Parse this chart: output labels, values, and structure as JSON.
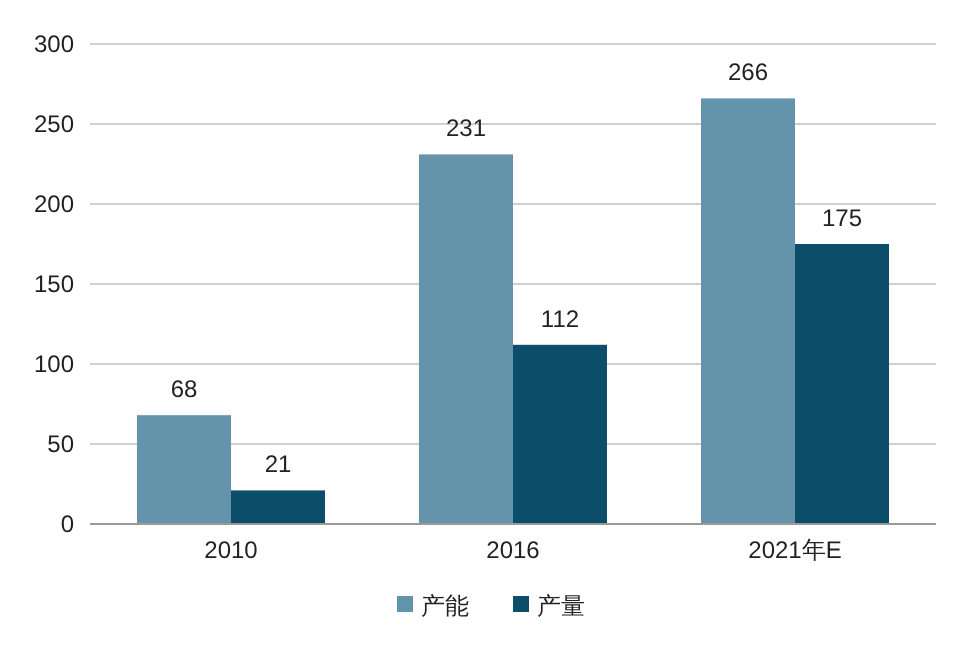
{
  "chart_data": {
    "type": "bar",
    "categories": [
      "2010",
      "2016",
      "2021年E"
    ],
    "series": [
      {
        "name": "产能",
        "color": "#6494ab",
        "values": [
          68,
          231,
          266
        ]
      },
      {
        "name": "产量",
        "color": "#0c4e6a",
        "values": [
          21,
          112,
          175
        ]
      }
    ],
    "ylim": [
      0,
      300
    ],
    "yticks": [
      0,
      50,
      100,
      150,
      200,
      250,
      300
    ],
    "grid": "y",
    "legend": "bottom",
    "data_labels": true
  }
}
